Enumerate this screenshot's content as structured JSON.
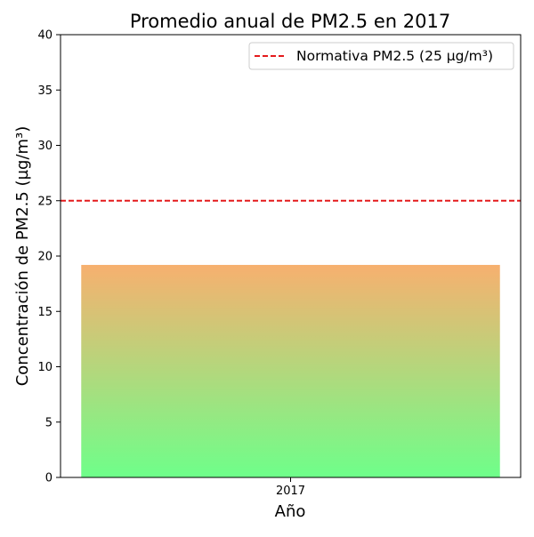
{
  "chart_data": {
    "type": "bar",
    "title": "Promedio anual de PM2.5 en 2017",
    "xlabel": "Año",
    "ylabel": "Concentración de PM2.5 (µg/m³)",
    "categories": [
      "2017"
    ],
    "values": [
      19.2
    ],
    "ylim": [
      0,
      40
    ],
    "yticks": [
      "0",
      "5",
      "10",
      "15",
      "20",
      "25",
      "30",
      "35",
      "40"
    ],
    "grid": false,
    "bar_gradient": {
      "bottom": "#6eff8a",
      "top": "#f7b06f"
    },
    "reference_line": {
      "value": 25,
      "label": "Normativa PM2.5 (25 µg/m³)",
      "color": "#e41a1c",
      "style": "dashed"
    },
    "legend": {
      "position": "top-right",
      "entries": [
        "Normativa PM2.5 (25 µg/m³)"
      ]
    }
  }
}
